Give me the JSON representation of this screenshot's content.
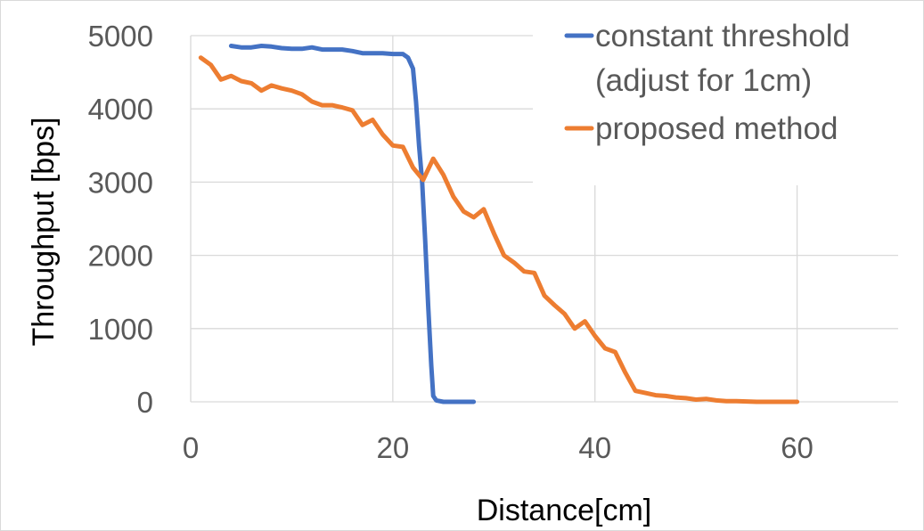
{
  "chart_data": {
    "type": "line",
    "title": "",
    "xlabel": "Distance[cm]",
    "ylabel": "Throughput [bps]",
    "xlim": [
      0,
      70
    ],
    "ylim": [
      0,
      5000
    ],
    "x_ticks": [
      "0",
      "20",
      "40",
      "60"
    ],
    "y_ticks": [
      "0",
      "1000",
      "2000",
      "3000",
      "4000",
      "5000"
    ],
    "grid": "on",
    "legend_position": "top-right",
    "series": [
      {
        "name": "constant threshold (adjust for 1cm)",
        "legend_lines": [
          "constant threshold",
          "(adjust for 1cm)"
        ],
        "color": "#4472c4",
        "x": [
          4,
          5,
          6,
          7,
          8,
          9,
          10,
          11,
          12,
          13,
          14,
          15,
          16,
          17,
          18,
          19,
          20,
          21,
          21.5,
          22,
          22.3,
          22.6,
          22.9,
          23.2,
          23.5,
          23.8,
          24,
          24.3,
          25,
          26,
          27,
          28
        ],
        "y": [
          4860,
          4840,
          4840,
          4860,
          4850,
          4830,
          4820,
          4820,
          4840,
          4810,
          4810,
          4810,
          4790,
          4760,
          4760,
          4760,
          4750,
          4750,
          4700,
          4550,
          4100,
          3500,
          3000,
          2200,
          1300,
          500,
          80,
          20,
          0,
          0,
          0,
          0
        ]
      },
      {
        "name": "proposed method",
        "legend_lines": [
          "proposed method"
        ],
        "color": "#ed7d31",
        "x": [
          1,
          2,
          3,
          4,
          5,
          6,
          7,
          8,
          9,
          10,
          11,
          12,
          13,
          14,
          15,
          16,
          17,
          18,
          19,
          20,
          21,
          22,
          23,
          24,
          25,
          26,
          27,
          28,
          29,
          30,
          31,
          32,
          33,
          34,
          35,
          36,
          37,
          38,
          39,
          40,
          41,
          42,
          43,
          44,
          45,
          46,
          47,
          48,
          49,
          50,
          51,
          52,
          53,
          54,
          55,
          56,
          57,
          58,
          59,
          60
        ],
        "y": [
          4700,
          4600,
          4400,
          4450,
          4380,
          4350,
          4250,
          4320,
          4280,
          4250,
          4200,
          4100,
          4050,
          4050,
          4020,
          3980,
          3780,
          3850,
          3650,
          3500,
          3480,
          3200,
          3030,
          3320,
          3100,
          2800,
          2600,
          2520,
          2630,
          2300,
          2000,
          1900,
          1780,
          1760,
          1450,
          1320,
          1200,
          1000,
          1100,
          900,
          730,
          680,
          400,
          150,
          120,
          90,
          80,
          60,
          50,
          30,
          40,
          20,
          10,
          10,
          5,
          0,
          0,
          0,
          0,
          0
        ]
      }
    ]
  }
}
